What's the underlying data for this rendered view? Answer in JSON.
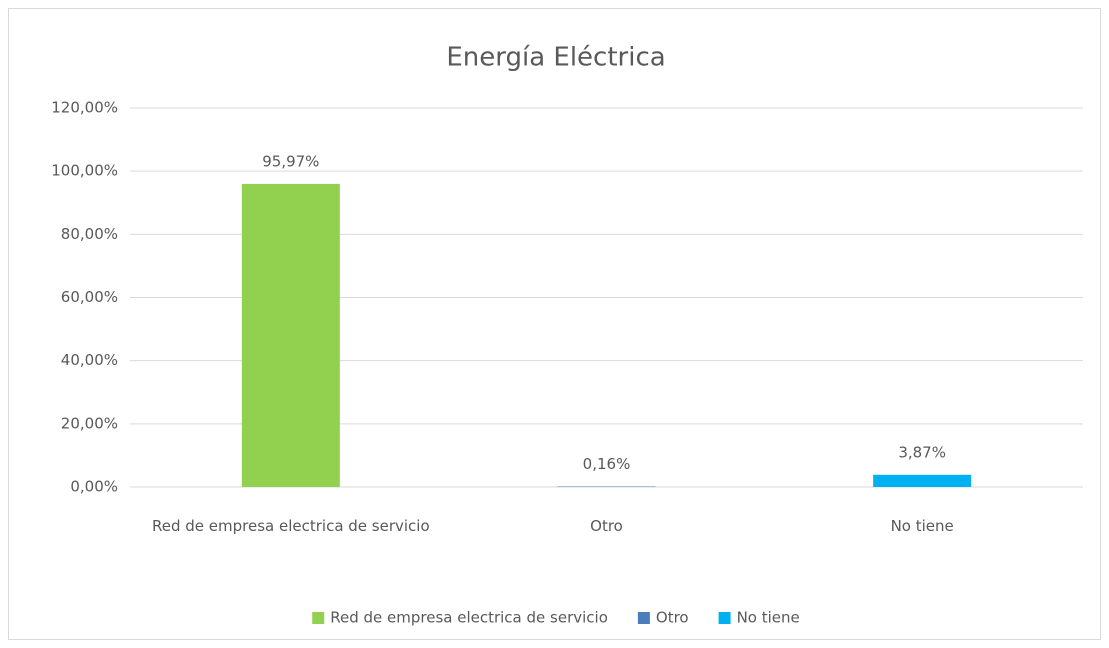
{
  "chart_data": {
    "type": "bar",
    "title": "Energía Eléctrica",
    "categories": [
      "Red de empresa electrica de servicio",
      "Otro",
      "No tiene"
    ],
    "values": [
      95.97,
      0.16,
      3.87
    ],
    "value_labels": [
      "95,97%",
      "0,16%",
      "3,87%"
    ],
    "colors": [
      "#92d050",
      "#4a7ebb",
      "#00b0f0"
    ],
    "ylim": [
      0,
      120
    ],
    "yticks": [
      {
        "value": 0,
        "label": "0,00%"
      },
      {
        "value": 20,
        "label": "20,00%"
      },
      {
        "value": 40,
        "label": "40,00%"
      },
      {
        "value": 60,
        "label": "60,00%"
      },
      {
        "value": 80,
        "label": "80,00%"
      },
      {
        "value": 100,
        "label": "100,00%"
      },
      {
        "value": 120,
        "label": "120,00%"
      }
    ],
    "grid": true,
    "legend": "bottom"
  }
}
